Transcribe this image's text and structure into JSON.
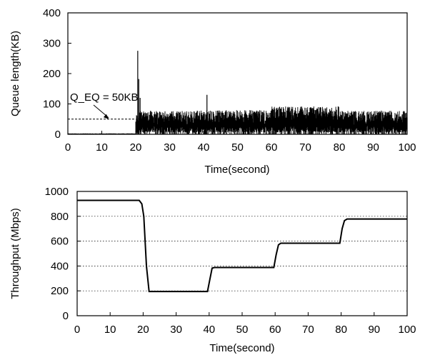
{
  "chart_data": [
    {
      "type": "area",
      "title": "",
      "xlabel": "Time(second)",
      "ylabel": "Queue length(KB)",
      "xlim": [
        0,
        100
      ],
      "ylim": [
        0,
        400
      ],
      "xticks": [
        0,
        10,
        20,
        30,
        40,
        50,
        60,
        70,
        80,
        90,
        100
      ],
      "yticks": [
        0,
        100,
        200,
        300,
        400
      ],
      "grid": false,
      "annotations": [
        {
          "text": "Q_EQ = 50KB",
          "reference_line_y": 50,
          "reference_line_xrange": [
            0,
            20
          ],
          "arrow_to": [
            12,
            50
          ]
        }
      ],
      "segments": [
        {
          "x_start": 0,
          "x_end": 20,
          "typical_min": 0,
          "typical_max": 3
        },
        {
          "x_start": 20,
          "x_end": 40,
          "typical_min": 0,
          "typical_max": 78
        },
        {
          "x_start": 40,
          "x_end": 60,
          "typical_min": 0,
          "typical_max": 80
        },
        {
          "x_start": 60,
          "x_end": 80,
          "typical_min": 0,
          "typical_max": 92
        },
        {
          "x_start": 80,
          "x_end": 100,
          "typical_min": 0,
          "typical_max": 78
        }
      ],
      "spikes": [
        {
          "x": 20.6,
          "y": 275
        },
        {
          "x": 20.9,
          "y": 182
        },
        {
          "x": 21.3,
          "y": 120
        },
        {
          "x": 41.0,
          "y": 130
        }
      ]
    },
    {
      "type": "line",
      "title": "",
      "xlabel": "Time(second)",
      "ylabel": "Throughput (Mbps)",
      "xlim": [
        0,
        100
      ],
      "ylim": [
        0,
        1000
      ],
      "xticks": [
        0,
        10,
        20,
        30,
        40,
        50,
        60,
        70,
        80,
        90,
        100
      ],
      "yticks": [
        0,
        200,
        400,
        600,
        800,
        1000
      ],
      "grid": "horizontal dotted",
      "x": [
        0,
        18.8,
        19.6,
        20.2,
        21.0,
        21.8,
        39.5,
        40.2,
        40.9,
        41.6,
        59.6,
        60.3,
        61.0,
        61.7,
        79.6,
        80.3,
        81.0,
        81.8,
        100
      ],
      "values": [
        928,
        928,
        900,
        800,
        400,
        195,
        195,
        290,
        383,
        388,
        388,
        490,
        570,
        583,
        583,
        700,
        765,
        778,
        778
      ]
    }
  ]
}
